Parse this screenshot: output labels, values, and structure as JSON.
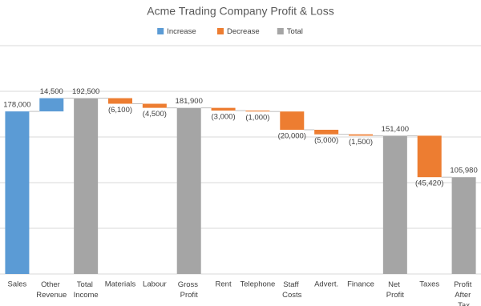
{
  "chart_data": {
    "type": "waterfall",
    "title": "Acme Trading Company Profit & Loss",
    "categories": [
      "Sales",
      "Other Revenue",
      "Total Income",
      "Materials",
      "Labour",
      "Gross Profit",
      "Rent",
      "Telephone",
      "Staff Costs",
      "Advert.",
      "Finance",
      "Net Profit",
      "Taxes",
      "Profit After Tax"
    ],
    "series": [
      {
        "name": "Increase",
        "color": "#5b9bd5",
        "values": [
          178000,
          14500,
          null,
          null,
          null,
          null,
          null,
          null,
          null,
          null,
          null,
          null,
          null,
          null
        ],
        "value_labels": [
          "178,000",
          "14,500",
          null,
          null,
          null,
          null,
          null,
          null,
          null,
          null,
          null,
          null,
          null,
          null
        ]
      },
      {
        "name": "Decrease",
        "color": "#ed7d31",
        "values": [
          null,
          null,
          null,
          -6100,
          -4500,
          null,
          -3000,
          -1000,
          -20000,
          -5000,
          -1500,
          null,
          -45420,
          null
        ],
        "value_labels": [
          null,
          null,
          null,
          "(6,100)",
          "(4,500)",
          null,
          "(3,000)",
          "(1,000)",
          "(20,000)",
          "(5,000)",
          "(1,500)",
          null,
          "(45,420)",
          null
        ]
      },
      {
        "name": "Total",
        "color": "#a5a5a5",
        "values": [
          null,
          null,
          192500,
          null,
          null,
          181900,
          null,
          null,
          null,
          null,
          null,
          151400,
          null,
          105980
        ],
        "value_labels": [
          null,
          null,
          "192,500",
          null,
          null,
          "181,900",
          null,
          null,
          null,
          null,
          null,
          "151,400",
          null,
          "105,980"
        ]
      }
    ],
    "ylim": [
      0,
      250000
    ],
    "yticks": [
      0,
      50000,
      100000,
      150000,
      200000,
      250000
    ],
    "grid": true,
    "legend": "top"
  }
}
